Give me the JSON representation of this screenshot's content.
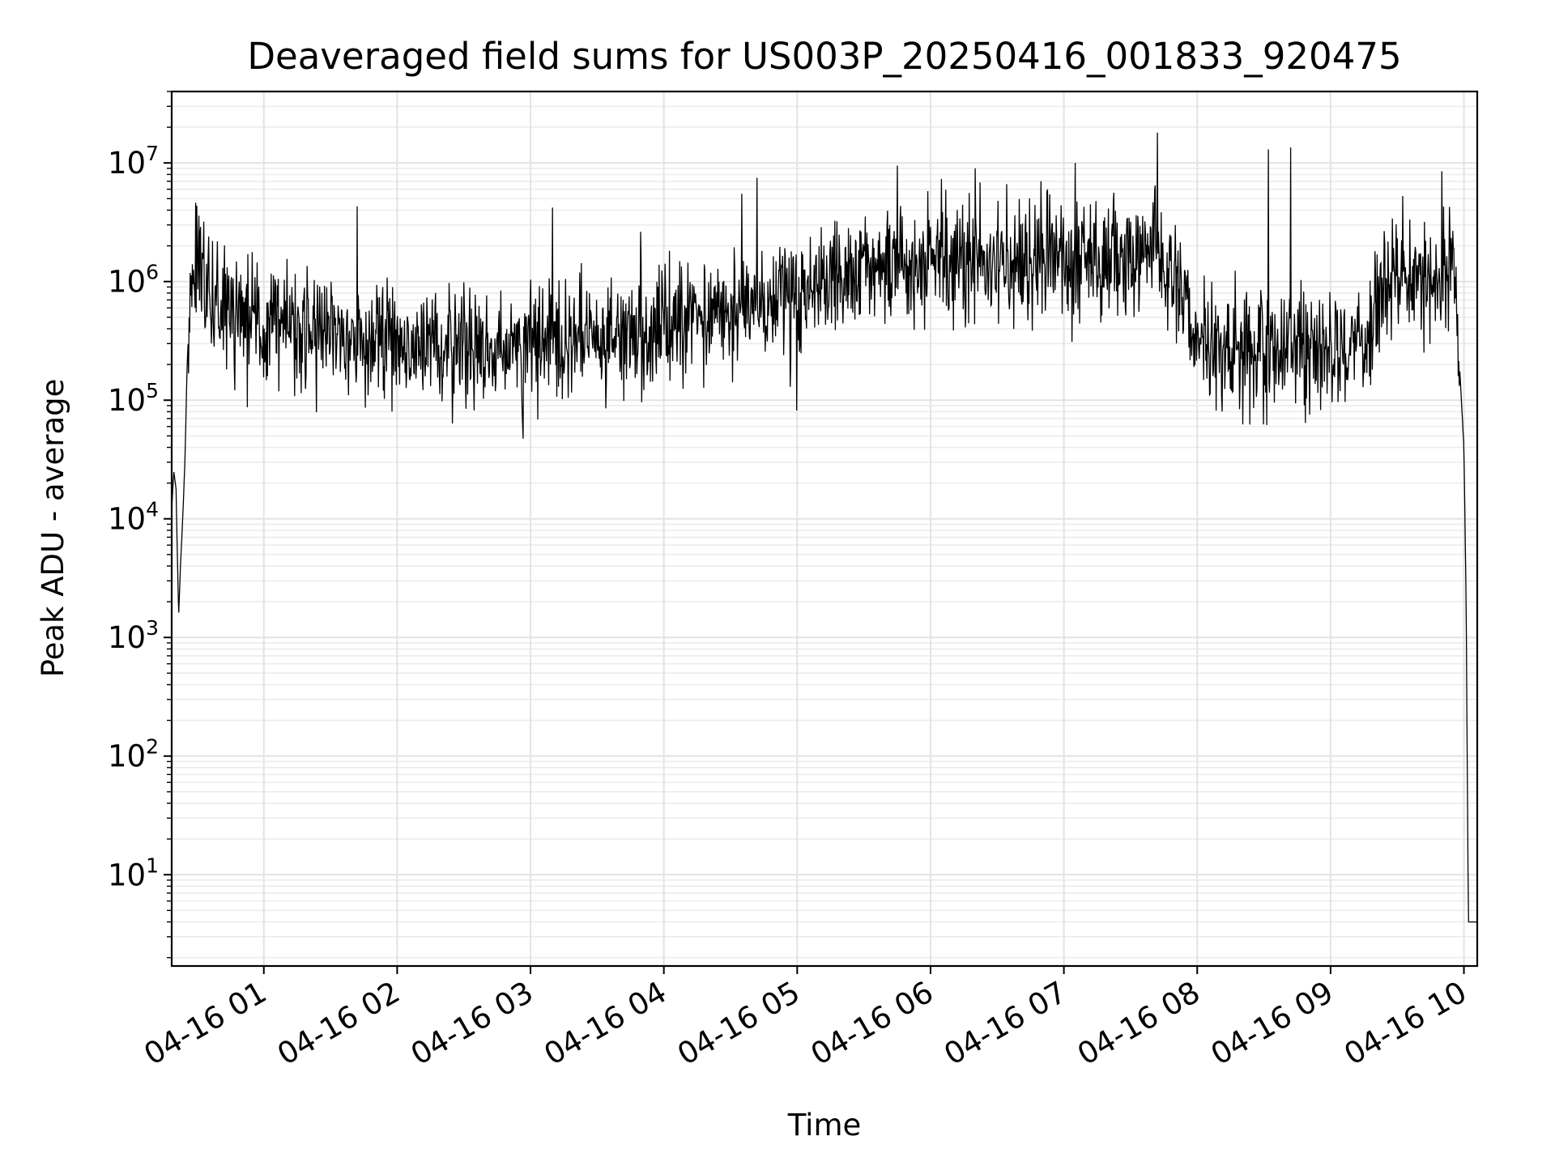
{
  "chart_data": {
    "type": "line",
    "title": "Deaveraged field sums for US003P_20250416_001833_920475",
    "xlabel": "Time",
    "ylabel": "Peak ADU - average",
    "yscale": "log",
    "grid": true,
    "line_color": "#000000",
    "ylim": [
      1.7,
      40000000
    ],
    "xlim": [
      "2025-04-16 00:18:33",
      "2025-04-16 10:06:00"
    ],
    "x_ticks": [
      "04-16 01",
      "04-16 02",
      "04-16 03",
      "04-16 04",
      "04-16 05",
      "04-16 06",
      "04-16 07",
      "04-16 08",
      "04-16 09",
      "04-16 10"
    ],
    "y_ticks": [
      {
        "base": "10",
        "exp": "1",
        "value": 10
      },
      {
        "base": "10",
        "exp": "2",
        "value": 100
      },
      {
        "base": "10",
        "exp": "3",
        "value": 1000
      },
      {
        "base": "10",
        "exp": "4",
        "value": 10000
      },
      {
        "base": "10",
        "exp": "5",
        "value": 100000
      },
      {
        "base": "10",
        "exp": "6",
        "value": 1000000
      },
      {
        "base": "10",
        "exp": "7",
        "value": 10000000
      }
    ],
    "series": [
      {
        "x": [
          "2025-04-16 00:18:33",
          "2025-04-16 00:19:30",
          "2025-04-16 00:20:30",
          "2025-04-16 00:21:40",
          "2025-04-16 00:22:30",
          "2025-04-16 00:23:30",
          "2025-04-16 00:24:30",
          "2025-04-16 00:25:30",
          "2025-04-16 00:27:00",
          "2025-04-16 00:29:00",
          "2025-04-16 00:30:00",
          "2025-04-16 00:31:00",
          "2025-04-16 00:32:00",
          "2025-04-16 00:34:00",
          "2025-04-16 00:36:00",
          "2025-04-16 00:38:00",
          "2025-04-16 00:40:00",
          "2025-04-16 00:45:00",
          "2025-04-16 00:50:00",
          "2025-04-16 00:55:00",
          "2025-04-16 01:00:00",
          "2025-04-16 01:15:00",
          "2025-04-16 01:30:00",
          "2025-04-16 01:45:00",
          "2025-04-16 02:00:00",
          "2025-04-16 02:15:00",
          "2025-04-16 02:30:00",
          "2025-04-16 02:45:00",
          "2025-04-16 03:00:00",
          "2025-04-16 03:15:00",
          "2025-04-16 03:30:00",
          "2025-04-16 03:45:00",
          "2025-04-16 04:00:00",
          "2025-04-16 04:15:00",
          "2025-04-16 04:30:00",
          "2025-04-16 04:45:00",
          "2025-04-16 05:00:00",
          "2025-04-16 05:15:00",
          "2025-04-16 05:30:00",
          "2025-04-16 05:45:00",
          "2025-04-16 06:00:00",
          "2025-04-16 06:15:00",
          "2025-04-16 06:30:00",
          "2025-04-16 06:45:00",
          "2025-04-16 07:00:00",
          "2025-04-16 07:15:00",
          "2025-04-16 07:30:00",
          "2025-04-16 07:45:00",
          "2025-04-16 08:00:00",
          "2025-04-16 08:15:00",
          "2025-04-16 08:30:00",
          "2025-04-16 08:45:00",
          "2025-04-16 09:00:00",
          "2025-04-16 09:15:00",
          "2025-04-16 09:30:00",
          "2025-04-16 09:45:00",
          "2025-04-16 09:55:00",
          "2025-04-16 09:58:00",
          "2025-04-16 10:00:00",
          "2025-04-16 10:01:00",
          "2025-04-16 10:02:00",
          "2025-04-16 10:03:00",
          "2025-04-16 10:06:00"
        ],
        "y": [
          12000,
          25000,
          18000,
          1500,
          4000,
          10000,
          30000,
          200000,
          900000,
          1800000,
          1600000,
          1200000,
          1000000,
          1000000,
          900000,
          800000,
          700000,
          550000,
          500000,
          450000,
          400000,
          400000,
          350000,
          330000,
          320000,
          300000,
          300000,
          320000,
          320000,
          330000,
          350000,
          400000,
          450000,
          500000,
          550000,
          600000,
          700000,
          1000000,
          1300000,
          1500000,
          1600000,
          1500000,
          1400000,
          1500000,
          1600000,
          1700000,
          1800000,
          1500000,
          400000,
          250000,
          300000,
          280000,
          250000,
          300000,
          1500000,
          1000000,
          1200000,
          200000,
          40000,
          2000,
          4,
          4,
          4
        ]
      }
    ],
    "noise": {
      "band_log10_halfwidth": 0.6,
      "sample_count": 2400,
      "spike_maxima": [
        {
          "x": "2025-04-16 00:33:00",
          "y": 3200000
        },
        {
          "x": "2025-04-16 01:42:00",
          "y": 4300000
        },
        {
          "x": "2025-04-16 03:10:00",
          "y": 4200000
        },
        {
          "x": "2025-04-16 04:35:00",
          "y": 5500000
        },
        {
          "x": "2025-04-16 04:42:00",
          "y": 7500000
        },
        {
          "x": "2025-04-16 05:45:00",
          "y": 9500000
        },
        {
          "x": "2025-04-16 06:20:00",
          "y": 9000000
        },
        {
          "x": "2025-04-16 07:05:00",
          "y": 10000000
        },
        {
          "x": "2025-04-16 07:42:00",
          "y": 18000000
        },
        {
          "x": "2025-04-16 08:32:00",
          "y": 13000000
        },
        {
          "x": "2025-04-16 08:42:00",
          "y": 13500000
        },
        {
          "x": "2025-04-16 09:50:00",
          "y": 8500000
        }
      ]
    }
  }
}
